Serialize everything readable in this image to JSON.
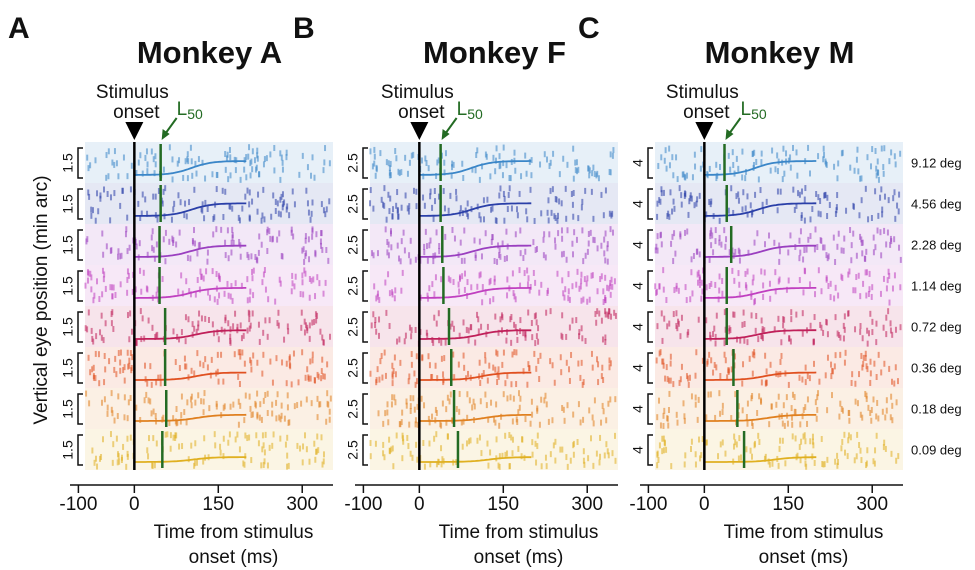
{
  "figure": {
    "xlabel": [
      "Time from stimulus",
      "onset (ms)"
    ],
    "ylabel": "Vertical eye position (min arc)",
    "stimulus_label": [
      "Stimulus",
      "onset"
    ],
    "l50_label": {
      "main": "L",
      "sub": "50"
    },
    "conditions": [
      {
        "label": "9.12 deg",
        "color": "#3a86c8"
      },
      {
        "label": "4.56 deg",
        "color": "#2a3fa8"
      },
      {
        "label": "2.28 deg",
        "color": "#9a3fc0"
      },
      {
        "label": "1.14 deg",
        "color": "#c040c0"
      },
      {
        "label": "0.72 deg",
        "color": "#c0205a"
      },
      {
        "label": "0.36 deg",
        "color": "#e05020"
      },
      {
        "label": "0.18 deg",
        "color": "#e08020"
      },
      {
        "label": "0.09 deg",
        "color": "#e0b020"
      }
    ]
  },
  "chart_data": [
    {
      "type": "raster",
      "panel": "A",
      "title": "Monkey A",
      "xlim": [
        -115,
        355
      ],
      "xticks": [
        -100,
        0,
        150,
        300
      ],
      "scale_bar": 1.5,
      "l50": [
        47,
        47,
        45,
        45,
        55,
        55,
        57,
        50
      ]
    },
    {
      "type": "raster",
      "panel": "B",
      "title": "Monkey F",
      "xlim": [
        -115,
        355
      ],
      "xticks": [
        -100,
        0,
        150,
        300
      ],
      "scale_bar": 2.5,
      "l50": [
        38,
        38,
        41,
        43,
        53,
        57,
        62,
        69
      ]
    },
    {
      "type": "raster",
      "panel": "C",
      "title": "Monkey M",
      "xlim": [
        -115,
        355
      ],
      "xticks": [
        -100,
        0,
        150,
        300
      ],
      "scale_bar": 4,
      "l50": [
        36,
        40,
        48,
        40,
        40,
        52,
        59,
        71
      ]
    }
  ]
}
